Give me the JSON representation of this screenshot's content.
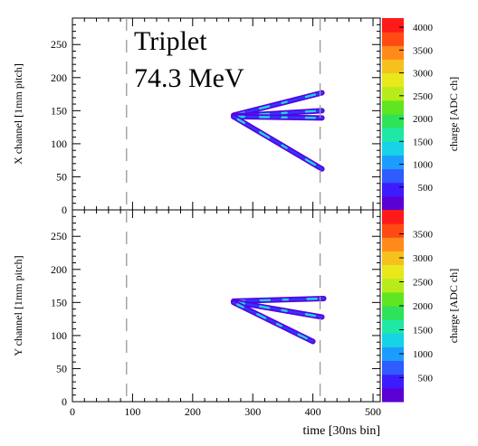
{
  "chart_data": {
    "type": "heatmap",
    "annotation": [
      "Triplet",
      "74.3 MeV"
    ],
    "xlabel": "time [30ns bin]",
    "xlim": [
      0,
      512
    ],
    "xticks": [
      "0",
      "100",
      "200",
      "300",
      "400",
      "500"
    ],
    "markers": [
      90,
      412
    ],
    "panels": [
      {
        "ylabel": "X channel [1mm pitch]",
        "ylim": [
          0,
          290
        ],
        "yticks": [
          "0",
          "50",
          "100",
          "150",
          "200",
          "250"
        ],
        "zlabel": "charge [ADC ch]",
        "zmax": 4200,
        "zticks": [
          "500",
          "1000",
          "1500",
          "2000",
          "2500",
          "3000",
          "3500",
          "4000"
        ],
        "tracks": [
          {
            "x0": 268,
            "y0": 143,
            "x1": 415,
            "y1": 177
          },
          {
            "x0": 268,
            "y0": 142,
            "x1": 415,
            "y1": 150
          },
          {
            "x0": 268,
            "y0": 141,
            "x1": 415,
            "y1": 139
          },
          {
            "x0": 268,
            "y0": 141,
            "x1": 415,
            "y1": 62
          }
        ]
      },
      {
        "ylabel": "Y channel [1mm pitch]",
        "ylim": [
          0,
          290
        ],
        "yticks": [
          "0",
          "50",
          "100",
          "150",
          "200",
          "250"
        ],
        "zlabel": "charge [ADC ch]",
        "zmax": 4000,
        "zticks": [
          "500",
          "1000",
          "1500",
          "2000",
          "2500",
          "3000",
          "3500"
        ],
        "tracks": [
          {
            "x0": 268,
            "y0": 152,
            "x1": 418,
            "y1": 156
          },
          {
            "x0": 268,
            "y0": 151,
            "x1": 415,
            "y1": 128
          },
          {
            "x0": 268,
            "y0": 150,
            "x1": 400,
            "y1": 91
          }
        ]
      }
    ]
  }
}
